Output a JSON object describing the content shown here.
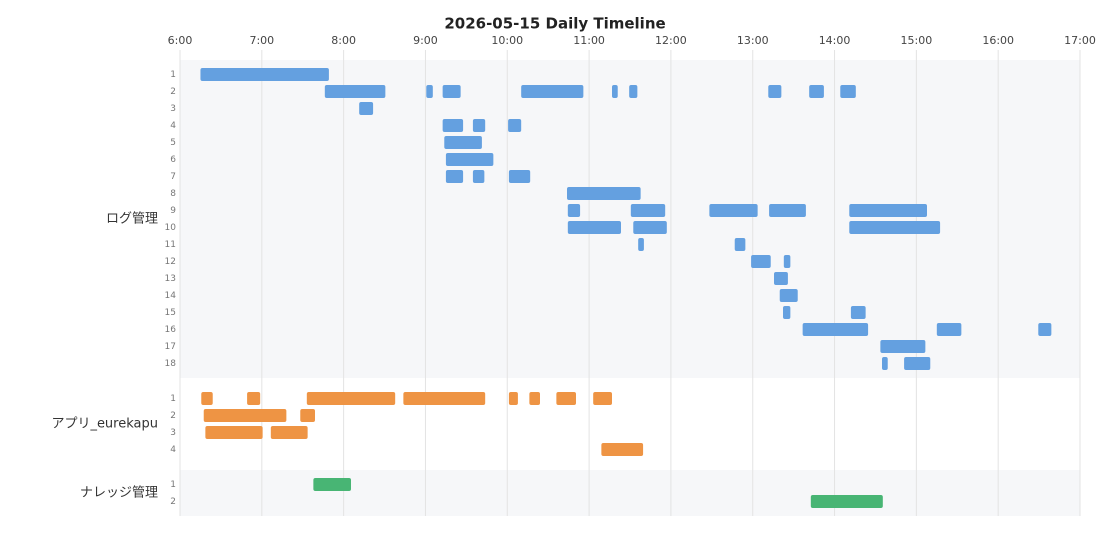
{
  "chart_data": {
    "type": "timeline",
    "title": "2026-05-15 Daily Timeline",
    "xlim": [
      6,
      17
    ],
    "xticks": [
      {
        "value": 6,
        "label": "6:00"
      },
      {
        "value": 7,
        "label": "7:00"
      },
      {
        "value": 8,
        "label": "8:00"
      },
      {
        "value": 9,
        "label": "9:00"
      },
      {
        "value": 10,
        "label": "10:00"
      },
      {
        "value": 11,
        "label": "11:00"
      },
      {
        "value": 12,
        "label": "12:00"
      },
      {
        "value": 13,
        "label": "13:00"
      },
      {
        "value": 14,
        "label": "14:00"
      },
      {
        "value": 15,
        "label": "15:00"
      },
      {
        "value": 16,
        "label": "16:00"
      },
      {
        "value": 17,
        "label": "17:00"
      }
    ],
    "grid": true,
    "groups": [
      {
        "name": "ログ管理",
        "color": "#64a0e0",
        "rows": [
          {
            "label": "1",
            "bars": [
              {
                "start": 6.25,
                "end": 7.82
              }
            ]
          },
          {
            "label": "2",
            "bars": [
              {
                "start": 7.77,
                "end": 8.51
              },
              {
                "start": 9.01,
                "end": 9.09
              },
              {
                "start": 9.21,
                "end": 9.43
              },
              {
                "start": 10.17,
                "end": 10.93
              },
              {
                "start": 11.28,
                "end": 11.35
              },
              {
                "start": 11.49,
                "end": 11.59
              },
              {
                "start": 13.19,
                "end": 13.35
              },
              {
                "start": 13.69,
                "end": 13.87
              },
              {
                "start": 14.07,
                "end": 14.26
              }
            ]
          },
          {
            "label": "3",
            "bars": [
              {
                "start": 8.19,
                "end": 8.36
              }
            ]
          },
          {
            "label": "4",
            "bars": [
              {
                "start": 9.21,
                "end": 9.46
              },
              {
                "start": 9.58,
                "end": 9.73
              },
              {
                "start": 10.01,
                "end": 10.17
              }
            ]
          },
          {
            "label": "5",
            "bars": [
              {
                "start": 9.23,
                "end": 9.69
              }
            ]
          },
          {
            "label": "6",
            "bars": [
              {
                "start": 9.25,
                "end": 9.83
              }
            ]
          },
          {
            "label": "7",
            "bars": [
              {
                "start": 9.25,
                "end": 9.46
              },
              {
                "start": 9.58,
                "end": 9.72
              },
              {
                "start": 10.02,
                "end": 10.28
              }
            ]
          },
          {
            "label": "8",
            "bars": [
              {
                "start": 10.73,
                "end": 11.63
              }
            ]
          },
          {
            "label": "9",
            "bars": [
              {
                "start": 10.74,
                "end": 10.89
              },
              {
                "start": 11.51,
                "end": 11.93
              },
              {
                "start": 12.47,
                "end": 13.06
              },
              {
                "start": 13.2,
                "end": 13.65
              },
              {
                "start": 14.18,
                "end": 15.13
              }
            ]
          },
          {
            "label": "10",
            "bars": [
              {
                "start": 10.74,
                "end": 11.39
              },
              {
                "start": 11.54,
                "end": 11.95
              },
              {
                "start": 14.18,
                "end": 15.29
              }
            ]
          },
          {
            "label": "11",
            "bars": [
              {
                "start": 11.6,
                "end": 11.67
              },
              {
                "start": 12.78,
                "end": 12.91
              }
            ]
          },
          {
            "label": "12",
            "bars": [
              {
                "start": 12.98,
                "end": 13.22
              },
              {
                "start": 13.38,
                "end": 13.46
              }
            ]
          },
          {
            "label": "13",
            "bars": [
              {
                "start": 13.26,
                "end": 13.43
              }
            ]
          },
          {
            "label": "14",
            "bars": [
              {
                "start": 13.33,
                "end": 13.55
              }
            ]
          },
          {
            "label": "15",
            "bars": [
              {
                "start": 13.37,
                "end": 13.46
              },
              {
                "start": 14.2,
                "end": 14.38
              }
            ]
          },
          {
            "label": "16",
            "bars": [
              {
                "start": 13.61,
                "end": 14.41
              },
              {
                "start": 15.25,
                "end": 15.55
              },
              {
                "start": 16.49,
                "end": 16.65
              }
            ]
          },
          {
            "label": "17",
            "bars": [
              {
                "start": 14.56,
                "end": 15.11
              }
            ]
          },
          {
            "label": "18",
            "bars": [
              {
                "start": 14.58,
                "end": 14.65
              },
              {
                "start": 14.85,
                "end": 15.17
              }
            ]
          }
        ]
      },
      {
        "name": "アプリ_eurekapu",
        "color": "#ee9444",
        "rows": [
          {
            "label": "1",
            "bars": [
              {
                "start": 6.26,
                "end": 6.4
              },
              {
                "start": 6.82,
                "end": 6.98
              },
              {
                "start": 7.55,
                "end": 8.63
              },
              {
                "start": 8.73,
                "end": 9.73
              },
              {
                "start": 10.02,
                "end": 10.13
              },
              {
                "start": 10.27,
                "end": 10.4
              },
              {
                "start": 10.6,
                "end": 10.84
              },
              {
                "start": 11.05,
                "end": 11.28
              }
            ]
          },
          {
            "label": "2",
            "bars": [
              {
                "start": 6.29,
                "end": 7.3
              },
              {
                "start": 7.47,
                "end": 7.65
              }
            ]
          },
          {
            "label": "3",
            "bars": [
              {
                "start": 6.31,
                "end": 7.01
              },
              {
                "start": 7.11,
                "end": 7.56
              }
            ]
          },
          {
            "label": "4",
            "bars": [
              {
                "start": 11.15,
                "end": 11.66
              }
            ]
          }
        ]
      },
      {
        "name": "ナレッジ管理",
        "color": "#48b574",
        "rows": [
          {
            "label": "1",
            "bars": [
              {
                "start": 7.63,
                "end": 8.09
              }
            ]
          },
          {
            "label": "2",
            "bars": [
              {
                "start": 13.71,
                "end": 14.59
              }
            ]
          }
        ]
      }
    ]
  }
}
